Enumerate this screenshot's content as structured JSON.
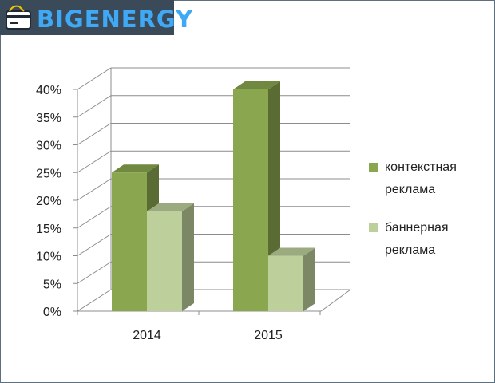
{
  "logo": {
    "text": "BIGENERGY",
    "icon": "wallet-card-icon",
    "text_color": "#3fa9f5"
  },
  "chart_data": {
    "type": "bar",
    "categories": [
      "2014",
      "2015"
    ],
    "series": [
      {
        "name": "контекстная реклама",
        "values": [
          25,
          40
        ],
        "color": "#8aa64f"
      },
      {
        "name": "баннерная реклама",
        "values": [
          18,
          10
        ],
        "color": "#bdd09b"
      }
    ],
    "ylim": [
      0,
      40
    ],
    "yticks": [
      "0%",
      "5%",
      "10%",
      "15%",
      "20%",
      "25%",
      "30%",
      "35%",
      "40%"
    ],
    "grid": true,
    "legend": "right",
    "three_d": true
  },
  "legend": {
    "items": [
      {
        "line1": "контекстная",
        "line2": "реклама",
        "color": "#8aa64f"
      },
      {
        "line1": "баннерная",
        "line2": "реклама",
        "color": "#bdd09b"
      }
    ]
  }
}
